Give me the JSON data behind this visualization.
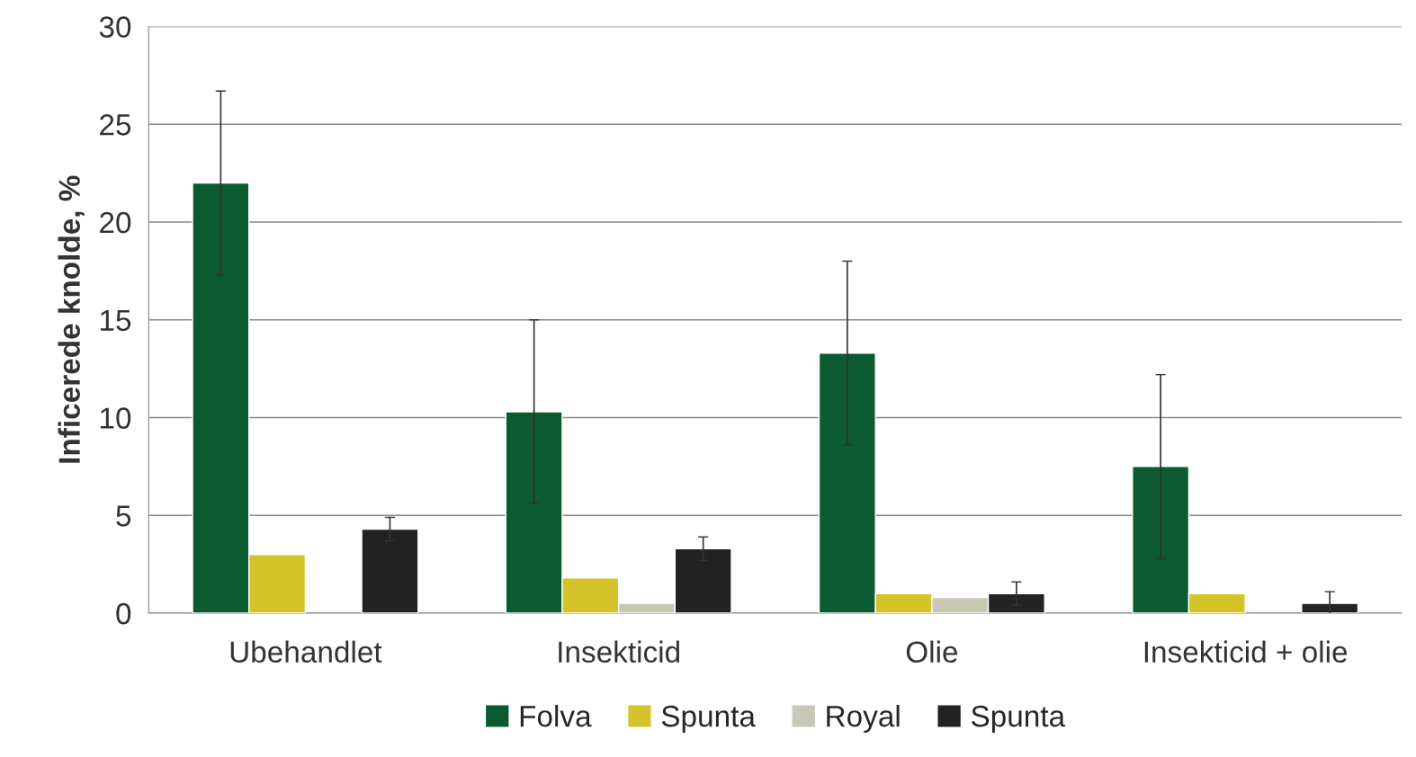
{
  "chart_data": {
    "type": "bar",
    "ylabel": "Inficerede knolde, %",
    "categories": [
      "Ubehandlet",
      "Insekticid",
      "Olie",
      "Insekticid + olie"
    ],
    "series": [
      {
        "name": "Folva",
        "color": "#0b5a30",
        "values": [
          22.0,
          10.3,
          13.3,
          7.5
        ],
        "errors": [
          4.7,
          4.7,
          4.7,
          4.7
        ]
      },
      {
        "name": "Spunta",
        "color": "#d4c42a",
        "values": [
          3.0,
          1.8,
          1.0,
          1.0
        ]
      },
      {
        "name": "Royal",
        "color": "#c8c8b4",
        "values": [
          null,
          0.5,
          0.8,
          null
        ]
      },
      {
        "name": "Spunta",
        "color": "#222222",
        "values": [
          4.3,
          3.3,
          1.0,
          0.5
        ],
        "errors": [
          0.6,
          0.6,
          0.6,
          0.6
        ]
      }
    ],
    "ylim": [
      0,
      30
    ],
    "yticks": [
      0,
      5,
      10,
      15,
      20,
      25,
      30
    ],
    "grid": "y",
    "legend": "bottom"
  }
}
